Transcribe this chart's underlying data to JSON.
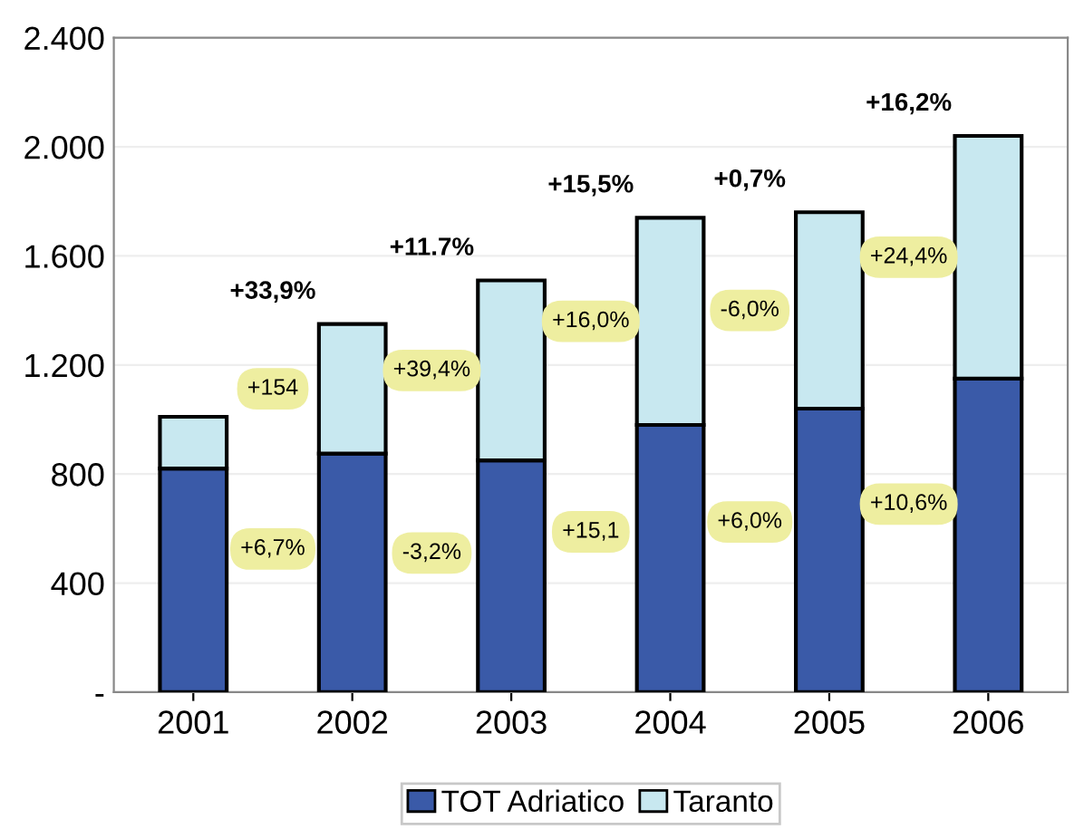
{
  "chart_data": {
    "type": "bar",
    "stacked": true,
    "categories": [
      "2001",
      "2002",
      "2003",
      "2004",
      "2005",
      "2006"
    ],
    "series": [
      {
        "name": "TOT Adriatico",
        "color": "#3a5aa8",
        "values": [
          820,
          875,
          850,
          980,
          1040,
          1150
        ]
      },
      {
        "name": "Taranto",
        "color": "#c8e8f0",
        "values": [
          190,
          475,
          660,
          760,
          720,
          890
        ]
      }
    ],
    "ylim": [
      0,
      2400
    ],
    "yticks": [
      {
        "value": 0,
        "label": "-"
      },
      {
        "value": 400,
        "label": "400"
      },
      {
        "value": 800,
        "label": "800"
      },
      {
        "value": 1200,
        "label": "1.200"
      },
      {
        "value": 1600,
        "label": "1.600"
      },
      {
        "value": 2000,
        "label": "2.000"
      },
      {
        "value": 2400,
        "label": "2.400"
      }
    ],
    "grid": "y",
    "legend": "bottom",
    "annotations": [
      "+33,9%",
      "+154",
      "+6,7%",
      "+11.7%",
      "+39,4%",
      "-3,2%",
      "+15,5%",
      "+16,0%",
      "+15,1",
      "+0,7%",
      "-6,0%",
      "+6,0%",
      "+16,2%",
      "+24,4%",
      "+10,6%"
    ]
  }
}
